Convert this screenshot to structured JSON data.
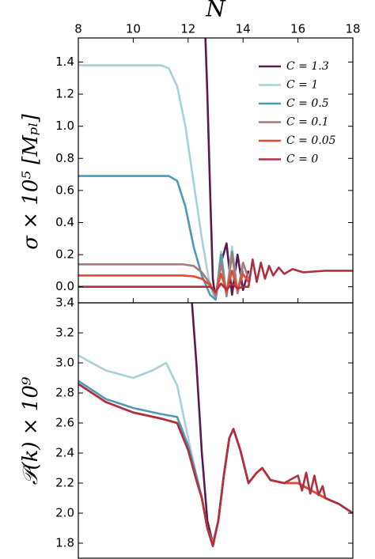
{
  "chart_data": [
    {
      "type": "line",
      "x_label": "N",
      "y_label": "σ × 10⁵ [Mₚₗ]",
      "xlim": [
        8,
        18
      ],
      "xticks": [
        8,
        10,
        12,
        14,
        16,
        18
      ],
      "ylim": [
        -0.1,
        1.55
      ],
      "yticks": [
        {
          "value": 0,
          "label": "0.0"
        },
        0.2,
        0.4,
        0.6,
        0.8,
        {
          "value": 1,
          "label": "1.0"
        },
        1.2,
        1.4
      ],
      "legend": "upper right",
      "series": [
        {
          "name": "C = 1.3",
          "color": "#5b1a4c",
          "x": [
            12.6,
            12.7,
            12.8,
            12.9,
            13.0,
            13.2,
            13.4,
            13.6,
            13.8,
            14.0,
            14.2
          ],
          "values": [
            1.7,
            1.2,
            0.6,
            0.05,
            -0.08,
            0.15,
            0.27,
            -0.05,
            0.2,
            -0.02,
            0.1
          ]
        },
        {
          "name": "C = 1",
          "color": "#a9d0d9",
          "x": [
            8,
            11.0,
            11.3,
            11.6,
            11.9,
            12.2,
            12.5,
            12.8,
            13.0,
            13.2,
            13.4,
            13.6,
            13.8,
            14.0
          ],
          "values": [
            1.38,
            1.38,
            1.36,
            1.25,
            1.0,
            0.65,
            0.3,
            0.0,
            -0.08,
            0.22,
            -0.05,
            0.25,
            -0.03,
            0.12
          ]
        },
        {
          "name": "C = 0.5",
          "color": "#4b9ab6",
          "x": [
            8,
            11.3,
            11.6,
            11.9,
            12.2,
            12.5,
            12.8,
            13.0,
            13.2,
            13.4,
            13.6,
            13.8,
            14.0
          ],
          "values": [
            0.69,
            0.69,
            0.66,
            0.5,
            0.25,
            0.07,
            -0.05,
            -0.08,
            0.2,
            -0.06,
            0.22,
            -0.04,
            0.1
          ]
        },
        {
          "name": "C = 0.1",
          "color": "#a87a7a",
          "x": [
            8,
            11.8,
            12.2,
            12.5,
            12.8,
            13.0,
            13.2,
            13.4,
            13.6,
            13.8,
            14.0,
            14.2
          ],
          "values": [
            0.14,
            0.14,
            0.13,
            0.09,
            0.02,
            -0.06,
            0.15,
            -0.05,
            0.2,
            -0.04,
            0.15,
            0.05
          ]
        },
        {
          "name": "C = 0.05",
          "color": "#e24a2e",
          "x": [
            8,
            11.8,
            12.2,
            12.5,
            12.8,
            13.0,
            13.2,
            13.4,
            13.6,
            13.8,
            14.0,
            14.2
          ],
          "values": [
            0.07,
            0.07,
            0.065,
            0.05,
            0.01,
            -0.04,
            0.08,
            -0.03,
            0.1,
            -0.02,
            0.08,
            0.03
          ]
        },
        {
          "name": "C = 0",
          "color": "#b0303f",
          "x": [
            8,
            12,
            12.8,
            13.0,
            13.2,
            13.4,
            13.6,
            13.8,
            14.0,
            14.2,
            14.35,
            14.5,
            14.65,
            14.8,
            14.95,
            15.1,
            15.3,
            15.5,
            15.8,
            16.2,
            17,
            18
          ],
          "values": [
            0,
            0,
            0,
            -0.03,
            0.02,
            -0.02,
            0.02,
            -0.01,
            0,
            0,
            0.17,
            0.03,
            0.15,
            0.05,
            0.13,
            0.07,
            0.12,
            0.08,
            0.11,
            0.09,
            0.1,
            0.1
          ]
        }
      ]
    },
    {
      "type": "line",
      "y_label": "𝒫(k) × 10⁹",
      "xlim": [
        8,
        18
      ],
      "ylim": [
        1.7,
        3.4
      ],
      "yticks": [
        1.8,
        {
          "value": 2,
          "label": "2.0"
        },
        2.2,
        2.4,
        2.6,
        2.8,
        {
          "value": 3,
          "label": "3.0"
        },
        3.2,
        3.4
      ],
      "series": [
        {
          "color": "#5b1a4c",
          "x": [
            12.1,
            12.3,
            12.5,
            12.7,
            12.9,
            13.1,
            13.3,
            13.5,
            13.65,
            13.9,
            14.2,
            14.5,
            14.7,
            15.0,
            15.5,
            16.0,
            16.5,
            17.0,
            17.5,
            18.0
          ],
          "values": [
            3.5,
            3.0,
            2.4,
            1.95,
            1.8,
            1.95,
            2.25,
            2.5,
            2.56,
            2.42,
            2.2,
            2.27,
            2.3,
            2.22,
            2.2,
            2.2,
            2.15,
            2.1,
            2.06,
            2.0
          ]
        },
        {
          "color": "#a9d0d9",
          "x": [
            8,
            9,
            10,
            10.7,
            11.2,
            11.6,
            12.0,
            12.3,
            12.5,
            12.7,
            12.9,
            13.1,
            13.3,
            13.5,
            13.65,
            13.9,
            14.2,
            14.5,
            14.7,
            15.0,
            15.5,
            16.0,
            16.5,
            17.0,
            17.5,
            18.0
          ],
          "values": [
            3.05,
            2.95,
            2.9,
            2.95,
            3.0,
            2.85,
            2.5,
            2.25,
            2.1,
            1.9,
            1.8,
            1.95,
            2.25,
            2.5,
            2.56,
            2.42,
            2.2,
            2.27,
            2.3,
            2.22,
            2.2,
            2.2,
            2.15,
            2.1,
            2.06,
            2.0
          ]
        },
        {
          "color": "#4b9ab6",
          "x": [
            8,
            9,
            10,
            11,
            11.6,
            12.0,
            12.3,
            12.5,
            12.7,
            12.9,
            13.1,
            13.3,
            13.5,
            13.65,
            13.9,
            14.2,
            14.5,
            14.7,
            15.0,
            15.5,
            16.0,
            16.5,
            17.0,
            17.5,
            18.0
          ],
          "values": [
            2.88,
            2.76,
            2.7,
            2.66,
            2.64,
            2.45,
            2.25,
            2.1,
            1.9,
            1.79,
            1.95,
            2.25,
            2.5,
            2.56,
            2.42,
            2.2,
            2.27,
            2.3,
            2.22,
            2.2,
            2.2,
            2.15,
            2.1,
            2.06,
            2.0
          ]
        },
        {
          "color": "#a87a7a",
          "x": [
            8,
            9,
            10,
            11,
            11.6,
            12.0,
            12.3,
            12.5,
            12.7,
            12.9,
            13.1,
            13.3,
            13.5,
            13.65,
            13.9,
            14.2,
            14.5,
            14.7,
            15.0,
            15.5,
            16.0,
            16.5,
            17.0,
            17.5,
            18.0
          ],
          "values": [
            2.86,
            2.74,
            2.67,
            2.63,
            2.6,
            2.42,
            2.22,
            2.1,
            1.9,
            1.79,
            1.95,
            2.25,
            2.5,
            2.56,
            2.42,
            2.2,
            2.27,
            2.3,
            2.22,
            2.2,
            2.2,
            2.15,
            2.1,
            2.06,
            2.0
          ]
        },
        {
          "color": "#e24a2e",
          "x": [
            8,
            9,
            10,
            11,
            11.6,
            12.0,
            12.3,
            12.5,
            12.7,
            12.9,
            13.1,
            13.3,
            13.5,
            13.65,
            13.9,
            14.2,
            14.5,
            14.7,
            15.0,
            15.5,
            16.0,
            16.5,
            17.0,
            17.5,
            18.0
          ],
          "values": [
            2.86,
            2.74,
            2.67,
            2.63,
            2.6,
            2.42,
            2.22,
            2.1,
            1.9,
            1.78,
            1.95,
            2.25,
            2.5,
            2.56,
            2.42,
            2.2,
            2.27,
            2.3,
            2.22,
            2.2,
            2.2,
            2.15,
            2.1,
            2.06,
            2.0
          ]
        },
        {
          "color": "#b0303f",
          "x": [
            8,
            9,
            10,
            11,
            11.6,
            12.0,
            12.3,
            12.5,
            12.7,
            12.9,
            13.1,
            13.3,
            13.5,
            13.65,
            13.9,
            14.2,
            14.5,
            14.7,
            15.0,
            15.5,
            16.0,
            16.15,
            16.3,
            16.45,
            16.6,
            16.75,
            16.9,
            17.0,
            17.5,
            18.0
          ],
          "values": [
            2.86,
            2.74,
            2.67,
            2.63,
            2.6,
            2.42,
            2.22,
            2.1,
            1.9,
            1.78,
            1.95,
            2.25,
            2.5,
            2.56,
            2.42,
            2.2,
            2.27,
            2.3,
            2.22,
            2.2,
            2.25,
            2.15,
            2.27,
            2.13,
            2.25,
            2.12,
            2.18,
            2.1,
            2.06,
            2.0
          ]
        }
      ]
    }
  ]
}
